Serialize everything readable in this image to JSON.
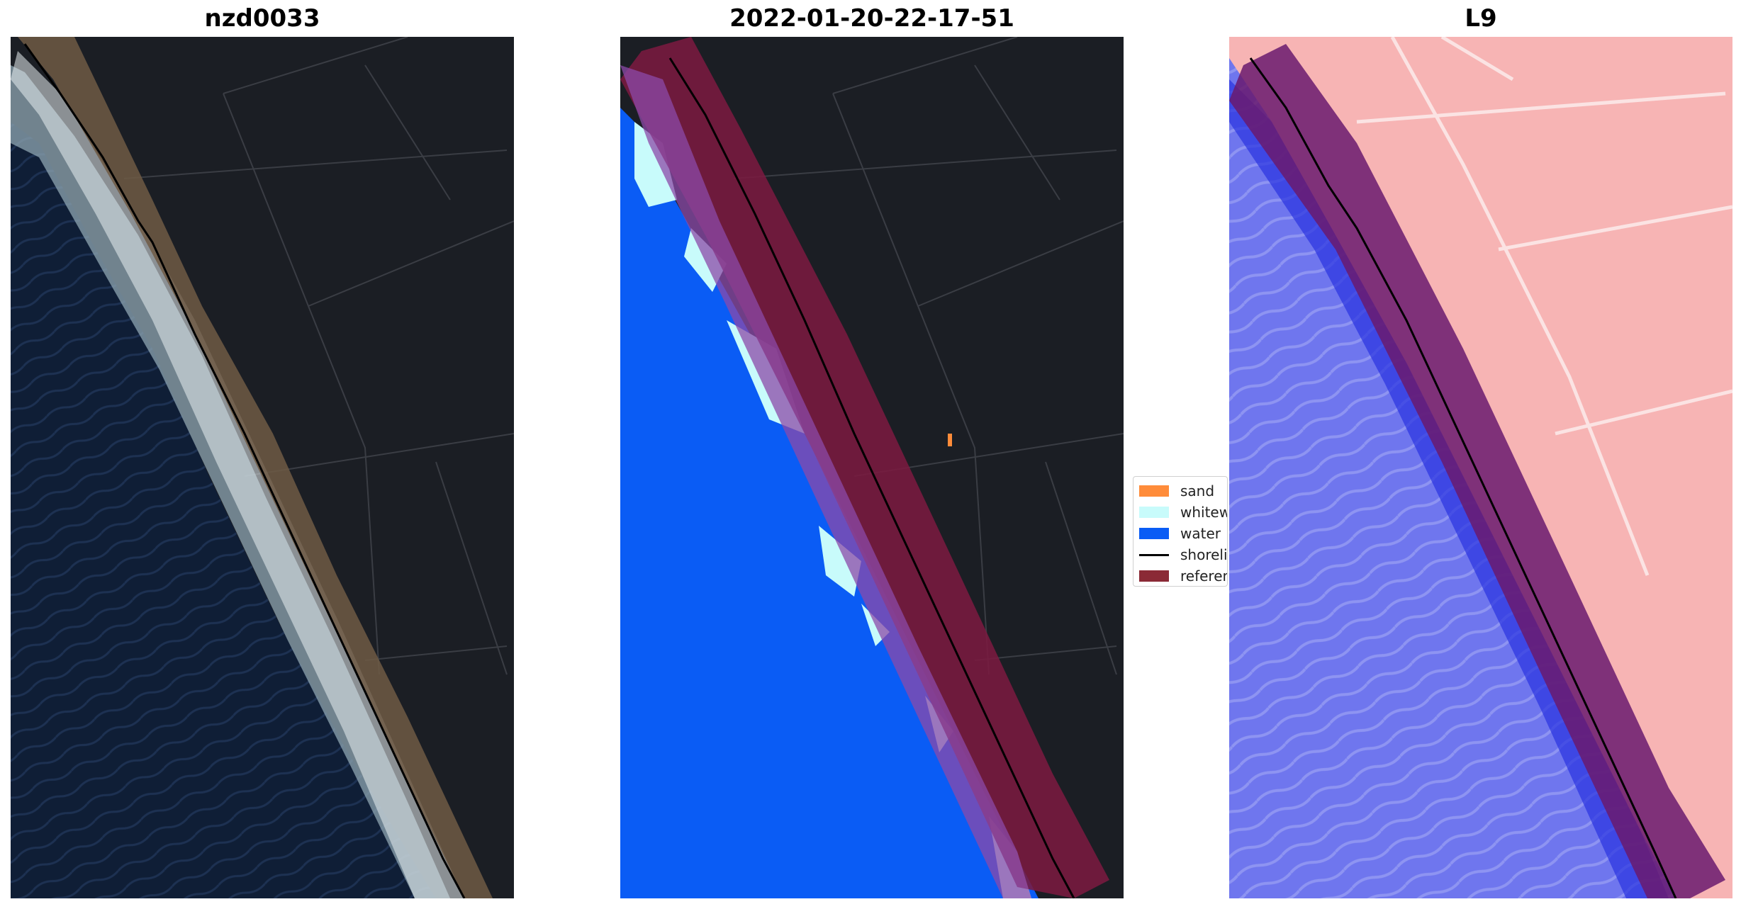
{
  "panels": [
    {
      "title": "nzd0033"
    },
    {
      "title": "2022-01-20-22-17-51"
    },
    {
      "title": "L9"
    }
  ],
  "legend": {
    "entries": [
      {
        "label": "sand",
        "color": "#ff8c3a",
        "kind": "patch"
      },
      {
        "label": "whitewater",
        "color": "#c8fbfb",
        "kind": "patch"
      },
      {
        "label": "water",
        "color": "#0a5cf5",
        "kind": "patch"
      },
      {
        "label": "shoreline",
        "color": "#000000",
        "kind": "line"
      },
      {
        "label": "reference",
        "color": "#8b2a36",
        "kind": "patch"
      }
    ]
  },
  "colors": {
    "land": "#1b1e24",
    "ocean": "#0e1c33",
    "foam": "#e8eef0",
    "reference_band": "#7a1a40",
    "index_positive": "#f5a0a0",
    "index_negative": "#4c55e6"
  }
}
